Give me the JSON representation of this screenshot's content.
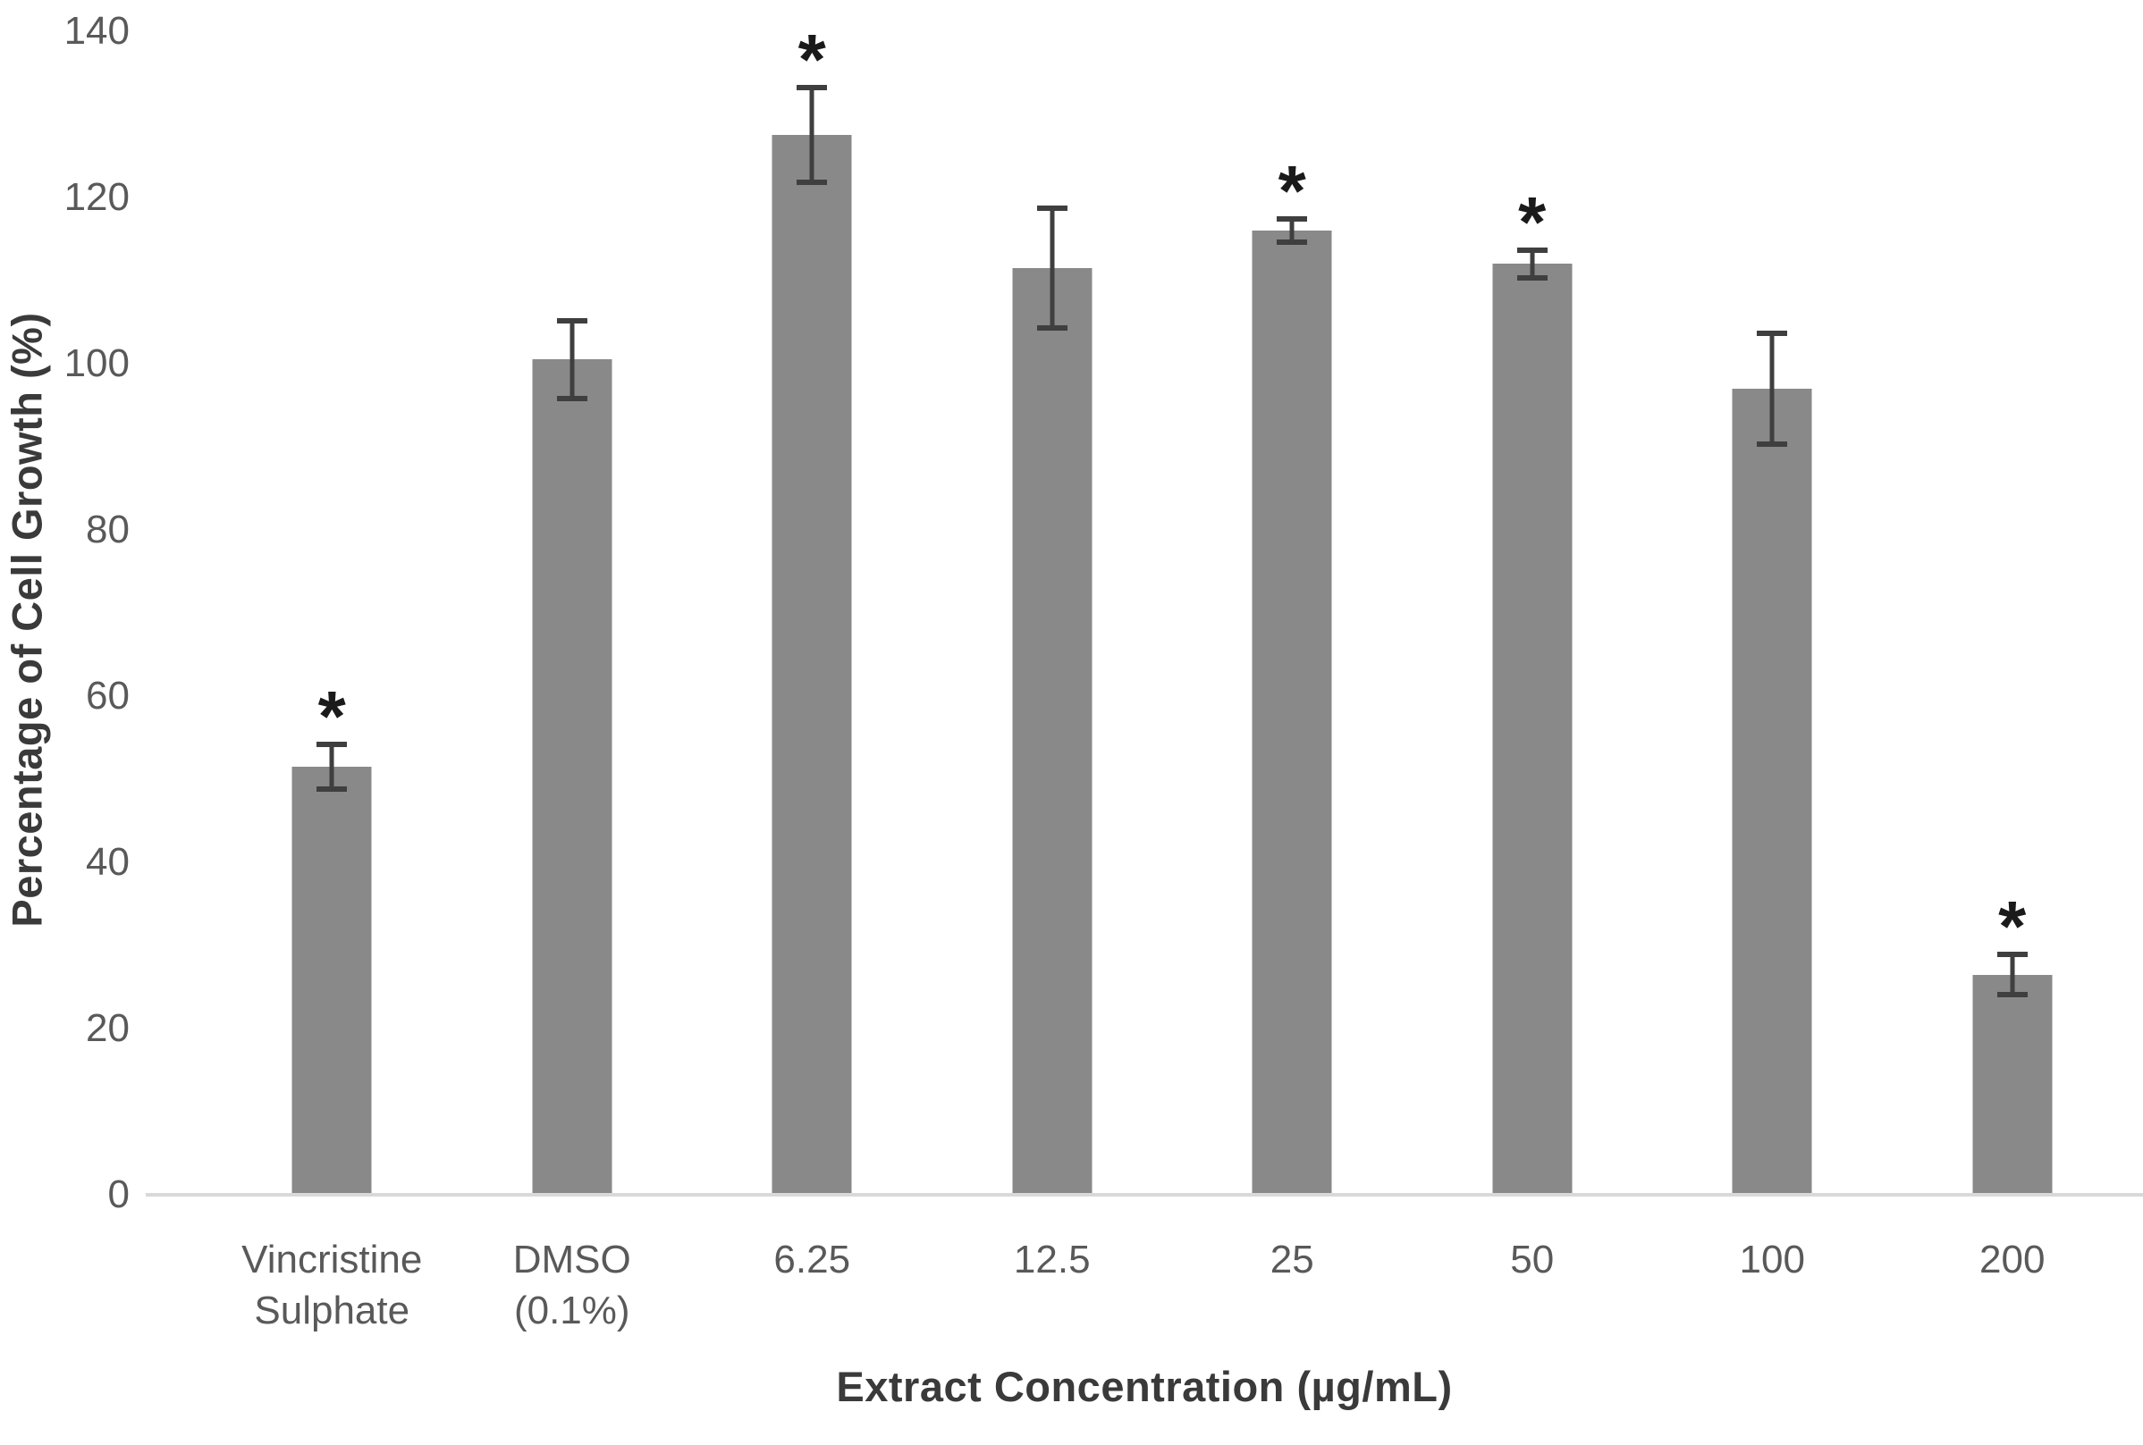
{
  "chart_data": {
    "type": "bar",
    "title": "",
    "xlabel": "Extract Concentration (µg/mL)",
    "ylabel": "Percentage of Cell Growth (%)",
    "categories": [
      "Vincristine Sulphate",
      "DMSO (0.1%)",
      "6.25",
      "12.5",
      "25",
      "50",
      "100",
      "200"
    ],
    "values": [
      51.5,
      100.5,
      127.5,
      111.5,
      116,
      112,
      97,
      26.5
    ],
    "error_bars": [
      3,
      5,
      6,
      7.5,
      1.7,
      2,
      7,
      2.7
    ],
    "significance": [
      true,
      false,
      true,
      false,
      true,
      true,
      false,
      true
    ],
    "significance_symbol": "*",
    "ylim": [
      0,
      140
    ],
    "yticks": [
      0,
      20,
      40,
      60,
      80,
      100,
      120,
      140
    ],
    "grid": false,
    "legend": "none",
    "colors": {
      "bar_fill": "#898989",
      "error_bar": "#3f3f3f",
      "axis_line": "#d9d9d9",
      "tick_label": "#595959",
      "axis_title": "#3a3a3a",
      "significance": "#1a1a1a",
      "background": "#ffffff"
    }
  }
}
